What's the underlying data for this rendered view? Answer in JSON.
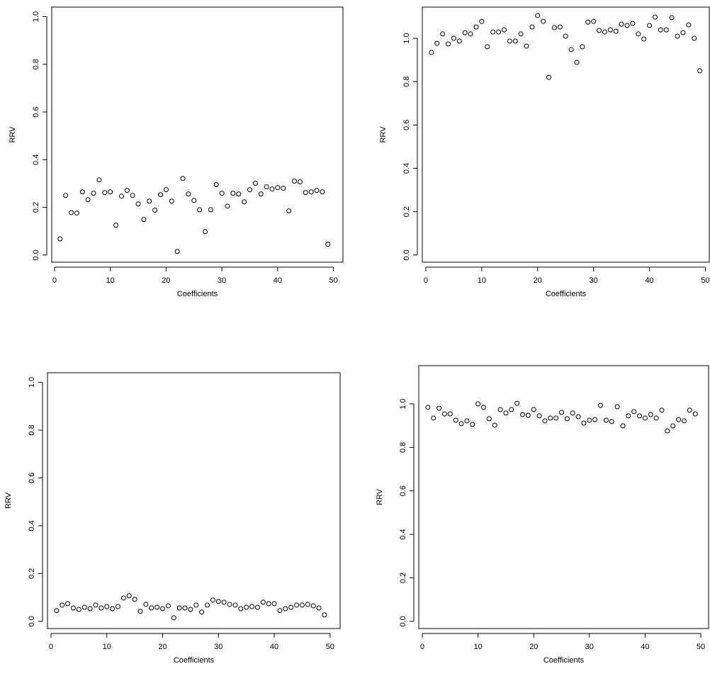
{
  "chart_data": [
    {
      "type": "scatter",
      "x_label": "Coefficients",
      "y_label": "RRV",
      "x": [
        1,
        2,
        3,
        4,
        5,
        6,
        7,
        8,
        9,
        10,
        11,
        12,
        13,
        14,
        15,
        16,
        17,
        18,
        19,
        20,
        21,
        22,
        23,
        24,
        25,
        26,
        27,
        28,
        29,
        30,
        31,
        32,
        33,
        34,
        35,
        36,
        37,
        38,
        39,
        40,
        41,
        42,
        43,
        44,
        45,
        46,
        47,
        48,
        49
      ],
      "values": [
        0.068,
        0.25,
        0.178,
        0.176,
        0.265,
        0.232,
        0.259,
        0.315,
        0.262,
        0.265,
        0.125,
        0.247,
        0.271,
        0.25,
        0.214,
        0.149,
        0.226,
        0.188,
        0.253,
        0.274,
        0.226,
        0.015,
        0.321,
        0.256,
        0.229,
        0.19,
        0.098,
        0.19,
        0.295,
        0.259,
        0.205,
        0.259,
        0.256,
        0.223,
        0.274,
        0.301,
        0.256,
        0.286,
        0.277,
        0.283,
        0.28,
        0.185,
        0.31,
        0.307,
        0.262,
        0.265,
        0.271,
        0.265,
        0.045
      ],
      "xlim": [
        -0.5,
        51.7
      ],
      "ylim": [
        -0.03,
        1.04
      ],
      "xticks": [
        0,
        10,
        20,
        30,
        40,
        50
      ],
      "yticks": [
        {
          "value": 0,
          "label": "0.0"
        },
        0.2,
        0.4,
        0.6,
        0.8,
        {
          "value": 1,
          "label": "1.0"
        }
      ]
    },
    {
      "type": "scatter",
      "x_label": "Coefficients",
      "y_label": "RRV",
      "x": [
        1,
        2,
        3,
        4,
        5,
        6,
        7,
        8,
        9,
        10,
        11,
        12,
        13,
        14,
        15,
        16,
        17,
        18,
        19,
        20,
        21,
        22,
        23,
        24,
        25,
        26,
        27,
        28,
        29,
        30,
        31,
        32,
        33,
        34,
        35,
        36,
        37,
        38,
        39,
        40,
        41,
        42,
        43,
        44,
        45,
        46,
        47,
        48,
        49
      ],
      "values": [
        0.935,
        0.977,
        1.02,
        0.974,
        1.0,
        0.987,
        1.026,
        1.02,
        1.052,
        1.078,
        0.961,
        1.029,
        1.029,
        1.039,
        0.987,
        0.987,
        1.02,
        0.964,
        1.052,
        1.105,
        1.078,
        0.82,
        1.049,
        1.052,
        1.01,
        0.948,
        0.889,
        0.961,
        1.075,
        1.078,
        1.036,
        1.029,
        1.039,
        1.033,
        1.065,
        1.059,
        1.069,
        1.02,
        0.997,
        1.059,
        1.098,
        1.039,
        1.039,
        1.095,
        1.01,
        1.026,
        1.062,
        1.0,
        0.85
      ],
      "xlim": [
        -0.63,
        50.7
      ],
      "ylim": [
        -0.033,
        1.144
      ],
      "xticks": [
        0,
        10,
        20,
        30,
        40,
        50
      ],
      "yticks": [
        {
          "value": 0,
          "label": "0.0"
        },
        0.2,
        0.4,
        0.6,
        0.8,
        {
          "value": 1,
          "label": "1.0"
        }
      ]
    },
    {
      "type": "scatter",
      "x_label": "Coefficients",
      "y_label": "RRV",
      "x": [
        1,
        2,
        3,
        4,
        5,
        6,
        7,
        8,
        9,
        10,
        11,
        12,
        13,
        14,
        15,
        16,
        17,
        18,
        19,
        20,
        21,
        22,
        23,
        24,
        25,
        26,
        27,
        28,
        29,
        30,
        31,
        32,
        33,
        34,
        35,
        36,
        37,
        38,
        39,
        40,
        41,
        42,
        43,
        44,
        45,
        46,
        47,
        48,
        49
      ],
      "values": [
        0.045,
        0.068,
        0.074,
        0.056,
        0.05,
        0.059,
        0.053,
        0.068,
        0.056,
        0.062,
        0.053,
        0.062,
        0.098,
        0.107,
        0.092,
        0.042,
        0.071,
        0.056,
        0.059,
        0.053,
        0.065,
        0.015,
        0.056,
        0.056,
        0.05,
        0.068,
        0.039,
        0.068,
        0.089,
        0.083,
        0.08,
        0.071,
        0.068,
        0.053,
        0.059,
        0.062,
        0.059,
        0.08,
        0.074,
        0.074,
        0.045,
        0.053,
        0.059,
        0.068,
        0.068,
        0.071,
        0.065,
        0.056,
        0.027
      ],
      "xlim": [
        -0.63,
        51.8
      ],
      "ylim": [
        -0.03,
        1.04
      ],
      "xticks": [
        0,
        10,
        20,
        30,
        40,
        50
      ],
      "yticks": [
        {
          "value": 0,
          "label": "0.0"
        },
        0.2,
        0.4,
        0.6,
        0.8,
        {
          "value": 1,
          "label": "1.0"
        }
      ]
    },
    {
      "type": "scatter",
      "x_label": "Coefficients",
      "y_label": "RRV",
      "x": [
        1,
        2,
        3,
        4,
        5,
        6,
        7,
        8,
        9,
        10,
        11,
        12,
        13,
        14,
        15,
        16,
        17,
        18,
        19,
        20,
        21,
        22,
        23,
        24,
        25,
        26,
        27,
        28,
        29,
        30,
        31,
        32,
        33,
        34,
        35,
        36,
        37,
        38,
        39,
        40,
        41,
        42,
        43,
        44,
        45,
        46,
        47,
        48,
        49
      ],
      "values": [
        0.984,
        0.935,
        0.98,
        0.954,
        0.954,
        0.925,
        0.909,
        0.922,
        0.906,
        1.0,
        0.984,
        0.932,
        0.902,
        0.974,
        0.958,
        0.974,
        1.003,
        0.951,
        0.948,
        0.974,
        0.945,
        0.922,
        0.935,
        0.935,
        0.961,
        0.932,
        0.958,
        0.941,
        0.912,
        0.925,
        0.928,
        0.993,
        0.925,
        0.919,
        0.987,
        0.899,
        0.945,
        0.964,
        0.945,
        0.935,
        0.951,
        0.935,
        0.971,
        0.876,
        0.899,
        0.928,
        0.922,
        0.971,
        0.954
      ],
      "xlim": [
        -0.64,
        51.4
      ],
      "ylim": [
        -0.033,
        1.176
      ],
      "xticks": [
        0,
        10,
        20,
        30,
        40,
        50
      ],
      "yticks": [
        {
          "value": 0,
          "label": "0.0"
        },
        0.2,
        0.4,
        0.6,
        0.8,
        {
          "value": 1,
          "label": "1.0"
        }
      ]
    }
  ]
}
